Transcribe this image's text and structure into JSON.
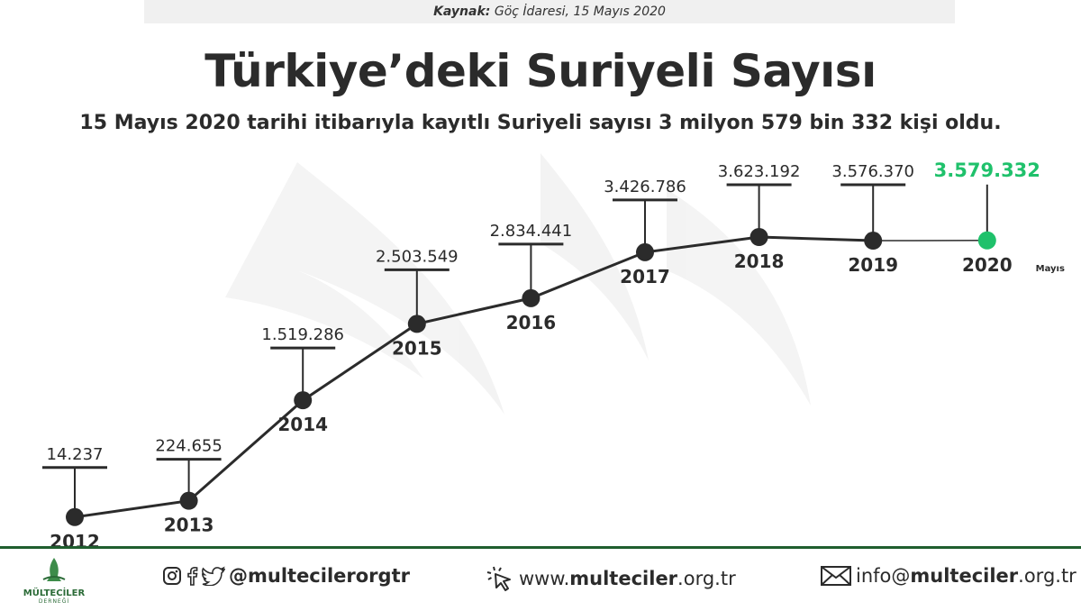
{
  "source": {
    "label": "Kaynak:",
    "text": "Göç İdaresi, 15 Mayıs 2020"
  },
  "chart_data": {
    "type": "line",
    "title": "Türkiye’deki Suriyeli Sayısı",
    "subtitle": "15 Mayıs 2020 tarihi itibarıyla kayıtlı Suriyeli sayısı 3 milyon 579 bin 332 kişi oldu.",
    "categories": [
      "2012",
      "2013",
      "2014",
      "2015",
      "2016",
      "2017",
      "2018",
      "2019",
      "2020"
    ],
    "values": [
      14237,
      224655,
      1519286,
      2503549,
      2834441,
      3426786,
      3623192,
      3576370,
      3579332
    ],
    "value_labels": [
      "14.237",
      "224.655",
      "1.519.286",
      "2.503.549",
      "2.834.441",
      "3.426.786",
      "3.623.192",
      "3.576.370",
      "3.579.332"
    ],
    "category_notes": [
      "",
      "",
      "",
      "",
      "",
      "",
      "",
      "",
      "Mayıs"
    ],
    "highlight_index": 8,
    "colors": {
      "line": "#2b2b2b",
      "highlight": "#1fc16b"
    }
  },
  "footer": {
    "logo_name": "MÜLTECİLER",
    "logo_sub": "DERNEĞİ",
    "social_handle": "@multecilerorgtr",
    "web_pre": "www.",
    "web_bold": "multeciler",
    "web_post": ".org.tr",
    "mail_pre": "info@",
    "mail_bold": "multeciler",
    "mail_post": ".org.tr",
    "icons": [
      "instagram-icon",
      "facebook-icon",
      "twitter-icon",
      "cursor-click-icon",
      "mail-icon",
      "bird-logo-icon"
    ]
  }
}
